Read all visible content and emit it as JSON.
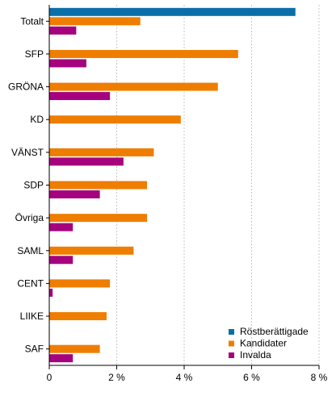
{
  "chart_data": {
    "type": "bar",
    "orientation": "horizontal",
    "categories": [
      "Totalt",
      "SFP",
      "GRÖNA",
      "KD",
      "VÄNST",
      "SDP",
      "Övriga",
      "SAML",
      "CENT",
      "LIIKE",
      "SAF"
    ],
    "series": [
      {
        "name": "Röstberättigade",
        "color": "#0a6fa8",
        "values": [
          7.3,
          null,
          null,
          null,
          null,
          null,
          null,
          null,
          null,
          null,
          null
        ]
      },
      {
        "name": "Kandidater",
        "color": "#ef7d00",
        "values": [
          2.7,
          5.6,
          5.0,
          3.9,
          3.1,
          2.9,
          2.9,
          2.5,
          1.8,
          1.7,
          1.5
        ]
      },
      {
        "name": "Invalda",
        "color": "#a5037e",
        "values": [
          0.8,
          1.1,
          1.8,
          null,
          2.2,
          1.5,
          0.7,
          0.7,
          0.1,
          null,
          0.7
        ]
      }
    ],
    "xlim": [
      0,
      8
    ],
    "xticks": [
      {
        "value": 0,
        "label": "0"
      },
      {
        "value": 2,
        "label": "2 %"
      },
      {
        "value": 4,
        "label": "4 %"
      },
      {
        "value": 6,
        "label": "6 %"
      },
      {
        "value": 8,
        "label": "8 %"
      }
    ],
    "grid": true,
    "gridlines": "vertical dashed",
    "legend_position": "bottom-right"
  }
}
